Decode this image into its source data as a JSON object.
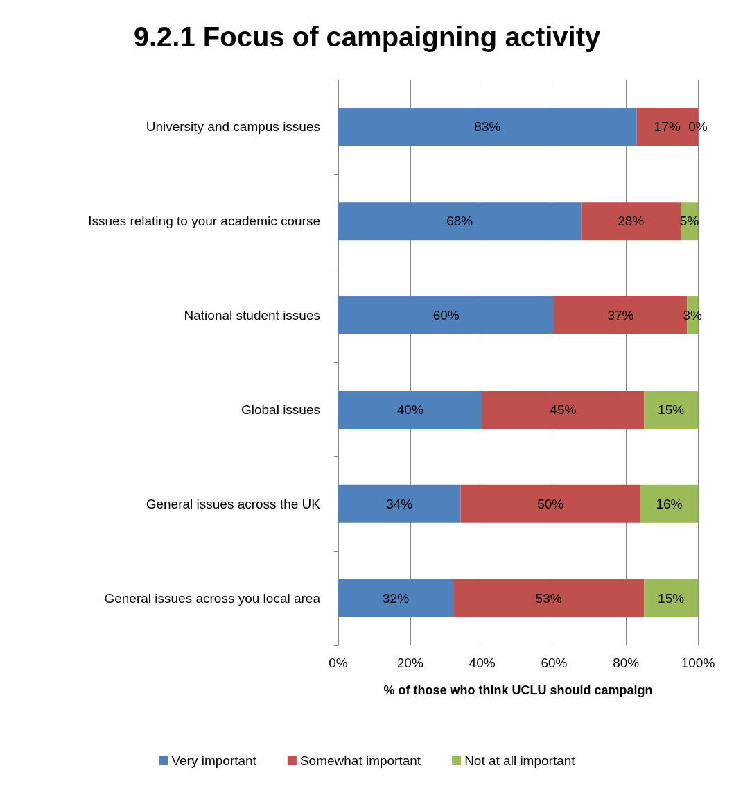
{
  "chart_data": {
    "type": "bar",
    "orientation": "horizontal",
    "stacked": true,
    "title": "9.2.1 Focus of campaigning activity",
    "xlabel": "% of those who think UCLU should campaign",
    "categories": [
      "University and campus issues",
      "Issues relating to your academic course",
      "National student issues",
      "Global issues",
      "General issues across the UK",
      "General issues across you local area"
    ],
    "series": [
      {
        "name": "Very important",
        "color": "#4f81bd",
        "values": [
          83,
          67.5,
          60,
          40,
          34,
          32
        ],
        "value_labels": [
          "83%",
          "68%",
          "60%",
          "40%",
          "34%",
          "32%"
        ]
      },
      {
        "name": "Somewhat important",
        "color": "#c0504d",
        "values": [
          17,
          27.7,
          37,
          45,
          50,
          53
        ],
        "value_labels": [
          "17%",
          "28%",
          "37%",
          "45%",
          "50%",
          "53%"
        ]
      },
      {
        "name": "Not at all important",
        "color": "#9bbb59",
        "values": [
          0,
          4.8,
          3,
          15,
          16,
          15
        ],
        "value_labels": [
          "0%",
          "5%",
          "3%",
          "15%",
          "16%",
          "15%"
        ]
      }
    ],
    "xlim": [
      0,
      100
    ],
    "xticks": [
      {
        "value": 0,
        "label": "0%"
      },
      {
        "value": 20,
        "label": "20%"
      },
      {
        "value": 40,
        "label": "40%"
      },
      {
        "value": 60,
        "label": "60%"
      },
      {
        "value": 80,
        "label": "80%"
      },
      {
        "value": 100,
        "label": "100%"
      }
    ],
    "grid": "x",
    "legend": "bottom"
  }
}
